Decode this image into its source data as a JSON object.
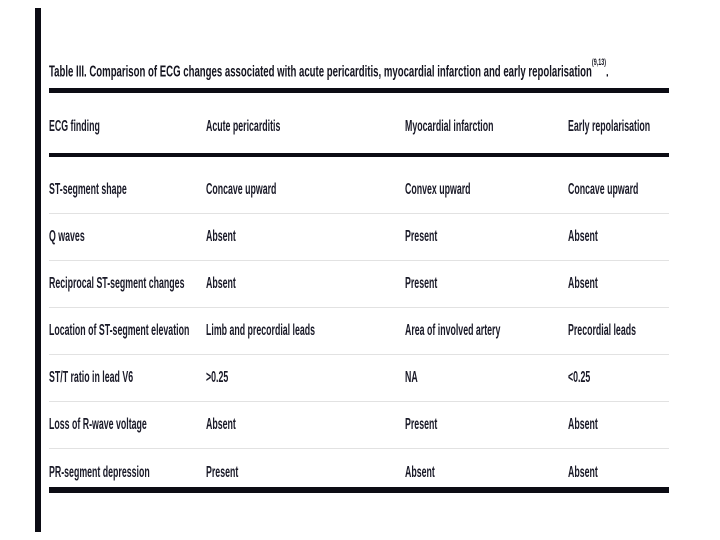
{
  "page": {
    "background": "#ffffff",
    "frame_bar_color": "#0c0c14",
    "rule_color": "#0c0c14",
    "text_color": "#1a1a28",
    "separator_color": "#e2e2e2"
  },
  "title": {
    "text": "Table III. Comparison of ECG changes associated with acute pericarditis, myocardial infarction and early repolarisation",
    "superscript": "(9,13)",
    "suffix": "."
  },
  "table": {
    "columns": [
      "ECG finding",
      "Acute pericarditis",
      "Myocardial infarction",
      "Early repolarisation"
    ],
    "rows": [
      [
        "ST-segment shape",
        "Concave upward",
        "Convex upward",
        "Concave upward"
      ],
      [
        "Q waves",
        "Absent",
        "Present",
        "Absent"
      ],
      [
        "Reciprocal ST-segment changes",
        "Absent",
        "Present",
        "Absent"
      ],
      [
        "Location of ST-segment elevation",
        "Limb and precordial leads",
        "Area of involved artery",
        "Precordial leads"
      ],
      [
        "ST/T ratio in lead V6",
        ">0.25",
        "NA",
        "<0.25"
      ],
      [
        "Loss of R-wave voltage",
        "Absent",
        "Present",
        "Absent"
      ],
      [
        "PR-segment depression",
        "Present",
        "Absent",
        "Absent"
      ]
    ]
  }
}
